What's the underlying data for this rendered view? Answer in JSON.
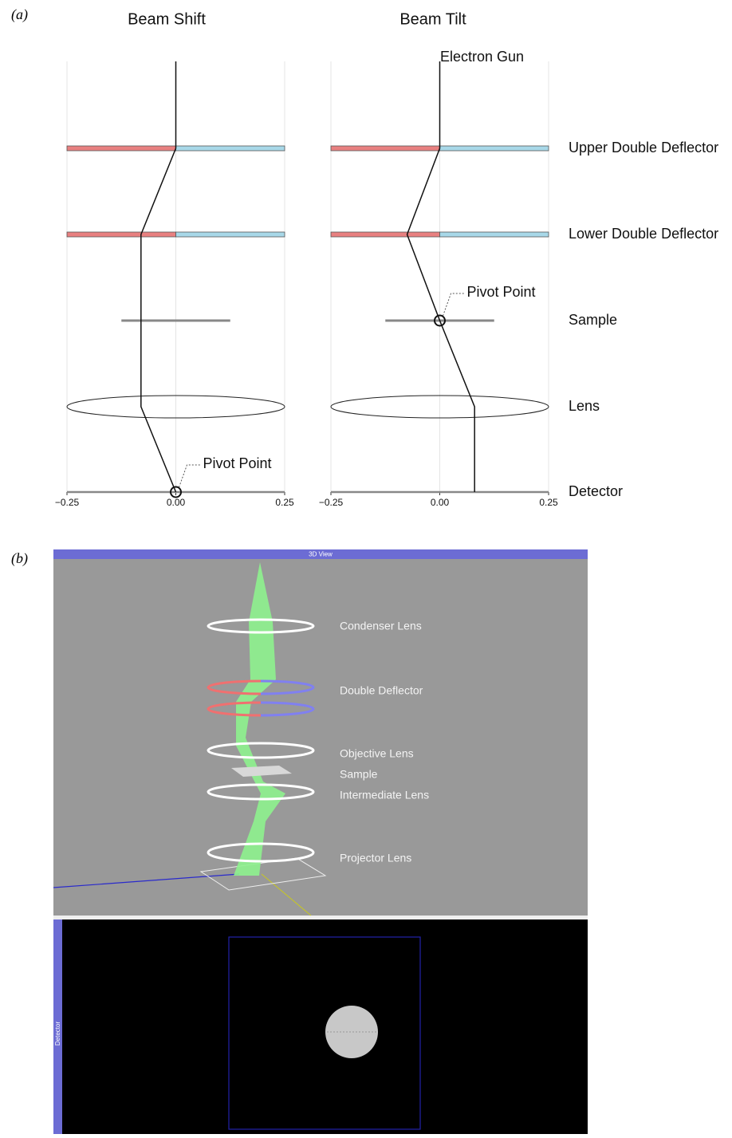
{
  "panel_a": {
    "label": "(a)",
    "gun_label": "Electron Gun",
    "levels": [
      "Upper Double Deflector",
      "Lower Double Deflector",
      "Sample",
      "Lens",
      "Detector"
    ],
    "plots": [
      {
        "title": "Beam Shift",
        "xlim": [
          -0.25,
          0.25
        ],
        "xticks": [
          {
            "value": -0.25,
            "label": "−0.25"
          },
          {
            "value": 0,
            "label": "0.00"
          },
          0.25
        ],
        "grid": true,
        "beam_x": [
          0,
          0,
          -0.08,
          -0.08,
          -0.08,
          0
        ],
        "sample_range": [
          -0.125,
          0.125
        ],
        "pivot": {
          "label": "Pivot Point",
          "x": 0,
          "level": 4
        }
      },
      {
        "title": "Beam Tilt",
        "xlim": [
          -0.25,
          0.25
        ],
        "xticks": [
          {
            "value": -0.25,
            "label": "−0.25"
          },
          {
            "value": 0,
            "label": "0.00"
          },
          0.25
        ],
        "grid": true,
        "beam_x": [
          0,
          0,
          -0.075,
          0,
          0.08,
          0.08
        ],
        "sample_range": [
          -0.125,
          0.125
        ],
        "pivot": {
          "label": "Pivot Point",
          "x": 0,
          "level": 2
        }
      }
    ]
  },
  "panel_b": {
    "label": "(b)",
    "view_title": "3D View",
    "components": [
      "Condenser Lens",
      "Double Deflector",
      "Objective Lens",
      "Sample",
      "Intermediate Lens",
      "Projector Lens"
    ],
    "detector_title": "Detector"
  }
}
